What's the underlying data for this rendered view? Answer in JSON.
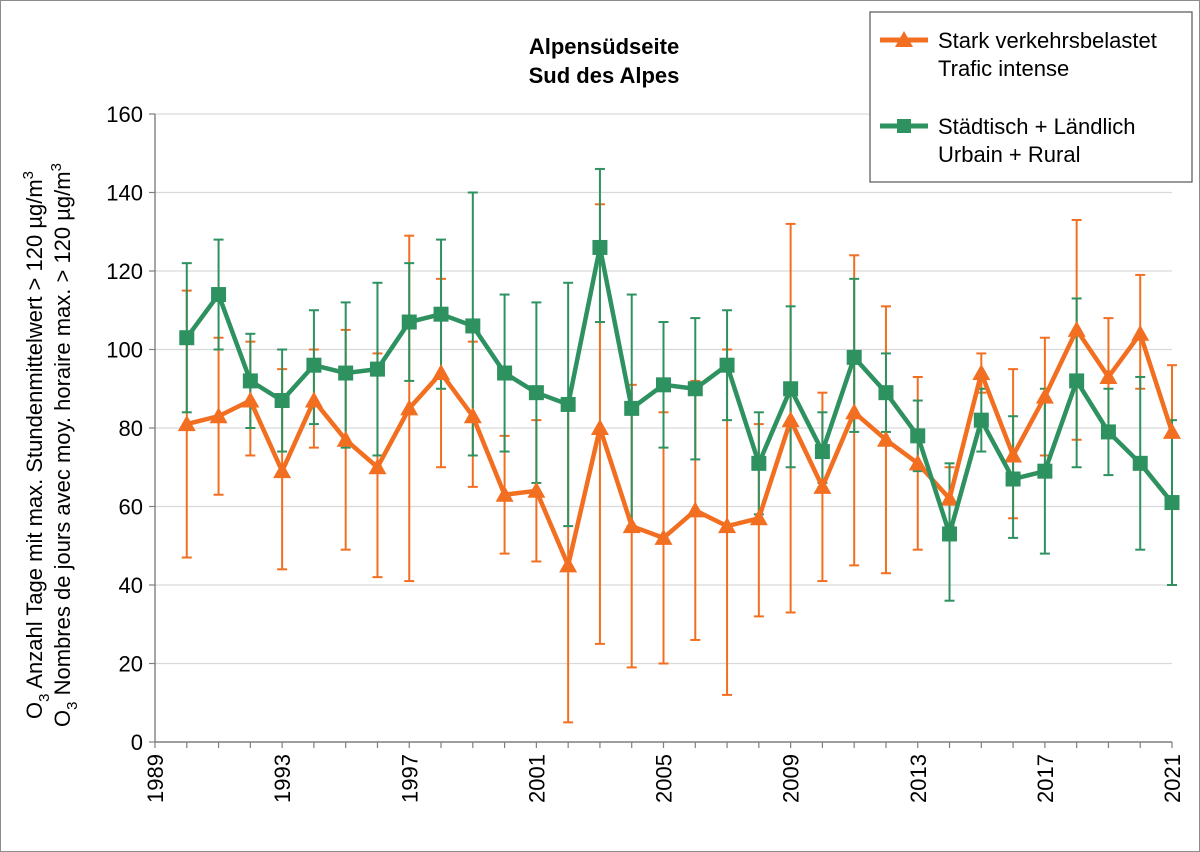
{
  "chart_data": {
    "type": "line",
    "title": [
      "Alpensüdseite",
      "Sud des Alpes"
    ],
    "ylabel_line1": {
      "base": "O",
      "sub": "3",
      "text": " Anzahl Tage mit max. Stundenmittelwert > 120 µg/m",
      "sup": "3"
    },
    "ylabel_line2": {
      "base": "O",
      "sub": "3",
      "text": " Nombres de jours avec moy. horaire max. > 120 µg/m",
      "sup": "3"
    },
    "ylim": [
      0,
      160
    ],
    "yticks": [
      0,
      20,
      40,
      60,
      80,
      100,
      120,
      140,
      160
    ],
    "xlim": [
      1989,
      2021
    ],
    "xticks": [
      "1989",
      "1993",
      "1997",
      "2001",
      "2005",
      "2009",
      "2013",
      "2017",
      "2021"
    ],
    "x": [
      1990,
      1991,
      1992,
      1993,
      1994,
      1995,
      1996,
      1997,
      1998,
      1999,
      2000,
      2001,
      2002,
      2003,
      2004,
      2005,
      2006,
      2007,
      2008,
      2009,
      2010,
      2011,
      2012,
      2013,
      2014,
      2015,
      2016,
      2017,
      2018,
      2019,
      2020,
      2021
    ],
    "grid": true,
    "legend_position": "top-right",
    "series": [
      {
        "name": "Stark verkehrsbelastet",
        "name2": "Trafic intense",
        "color": "#f26f21",
        "marker": "triangle",
        "values": [
          81,
          83,
          87,
          69,
          87,
          77,
          70,
          85,
          94,
          83,
          63,
          64,
          45,
          80,
          55,
          52,
          59,
          55,
          57,
          82,
          65,
          84,
          77,
          71,
          62,
          94,
          73,
          88,
          105,
          93,
          104,
          79
        ],
        "err_low": [
          47,
          63,
          73,
          44,
          75,
          49,
          42,
          41,
          70,
          65,
          48,
          46,
          5,
          25,
          19,
          20,
          26,
          12,
          32,
          33,
          41,
          45,
          43,
          49,
          55,
          89,
          57,
          73,
          77,
          78,
          90,
          62
        ],
        "err_high": [
          115,
          103,
          102,
          95,
          100,
          105,
          99,
          129,
          118,
          102,
          78,
          82,
          85,
          137,
          91,
          84,
          92,
          100,
          81,
          132,
          89,
          124,
          111,
          93,
          70,
          99,
          95,
          103,
          133,
          108,
          119,
          96
        ]
      },
      {
        "name": "Städtisch + Ländlich",
        "name2": "Urbain + Rural",
        "color": "#2e9160",
        "marker": "square",
        "values": [
          103,
          114,
          92,
          87,
          96,
          94,
          95,
          107,
          109,
          106,
          94,
          89,
          86,
          126,
          85,
          91,
          90,
          96,
          71,
          90,
          74,
          98,
          89,
          78,
          53,
          82,
          67,
          69,
          92,
          79,
          71,
          61
        ],
        "err_low": [
          84,
          100,
          80,
          74,
          81,
          75,
          73,
          92,
          90,
          73,
          74,
          66,
          55,
          107,
          55,
          75,
          72,
          82,
          58,
          70,
          66,
          79,
          79,
          69,
          36,
          74,
          52,
          48,
          70,
          68,
          49,
          40
        ],
        "err_high": [
          122,
          128,
          104,
          100,
          110,
          112,
          117,
          122,
          128,
          140,
          114,
          112,
          117,
          146,
          114,
          107,
          108,
          110,
          84,
          111,
          84,
          118,
          99,
          87,
          71,
          90,
          83,
          90,
          113,
          90,
          93,
          82
        ]
      }
    ]
  }
}
